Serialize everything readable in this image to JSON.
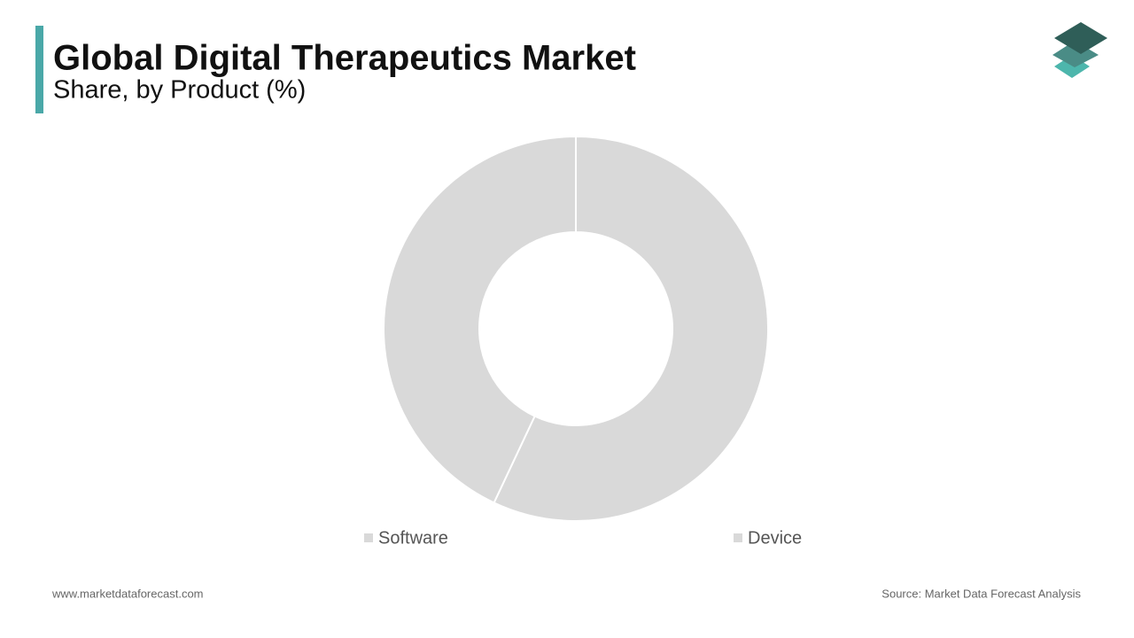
{
  "chart_data": {
    "type": "donut",
    "title": "Global Digital Therapeutics Market",
    "subtitle": "Share, by Product (%)",
    "categories": [
      "Software",
      "Device"
    ],
    "values": [
      57,
      43
    ],
    "colors": [
      "#d9d9d9",
      "#d9d9d9"
    ]
  },
  "footer": {
    "website": "www.marketdataforecast.com",
    "source": "Source: Market Data Forecast Analysis"
  }
}
